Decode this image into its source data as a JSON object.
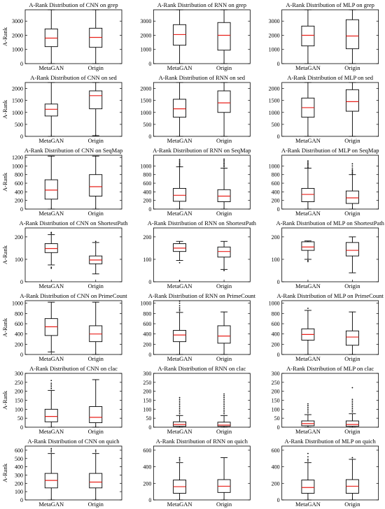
{
  "chart_data": [
    {
      "type": "box",
      "title": "A-Rank Distribution of CNN on grep",
      "ylabel": "A-Rank",
      "categories": [
        "MetaGAN",
        "Origin"
      ],
      "ylim": [
        0,
        3800
      ],
      "yticks": [
        0,
        1000,
        2000,
        3000
      ],
      "boxes": [
        {
          "min": 0,
          "q1": 1200,
          "median": 1800,
          "q3": 2450,
          "max": 3800,
          "outliers": []
        },
        {
          "min": 0,
          "q1": 1150,
          "median": 1850,
          "q3": 2500,
          "max": 3800,
          "outliers": []
        }
      ]
    },
    {
      "type": "box",
      "title": "A-Rank Distribution of RNN on grep",
      "ylabel": "",
      "categories": [
        "MetaGAN",
        "Origin"
      ],
      "ylim": [
        0,
        3800
      ],
      "yticks": [
        0,
        1000,
        2000,
        3000
      ],
      "boxes": [
        {
          "min": 0,
          "q1": 1300,
          "median": 2050,
          "q3": 2750,
          "max": 3800,
          "outliers": []
        },
        {
          "min": 0,
          "q1": 950,
          "median": 2000,
          "q3": 2900,
          "max": 3800,
          "outliers": []
        }
      ]
    },
    {
      "type": "box",
      "title": "A-Rank Distribution of MLP on grep",
      "ylabel": "",
      "categories": [
        "MetaGAN",
        "Origin"
      ],
      "ylim": [
        0,
        3800
      ],
      "yticks": [
        0,
        1000,
        2000,
        3000
      ],
      "boxes": [
        {
          "min": 0,
          "q1": 1250,
          "median": 2000,
          "q3": 2650,
          "max": 3800,
          "outliers": []
        },
        {
          "min": 0,
          "q1": 1050,
          "median": 1950,
          "q3": 3100,
          "max": 3800,
          "outliers": []
        }
      ]
    },
    {
      "type": "box",
      "title": "A-Rank Distribution of CNN on sed",
      "ylabel": "A-Rank",
      "categories": [
        "MetaGAN",
        "Origin"
      ],
      "ylim": [
        0,
        2250
      ],
      "yticks": [
        0,
        500,
        1000,
        1500,
        2000
      ],
      "boxes": [
        {
          "min": 0,
          "q1": 850,
          "median": 1130,
          "q3": 1350,
          "max": 2250,
          "outliers": []
        },
        {
          "min": 30,
          "q1": 1150,
          "median": 1700,
          "q3": 1900,
          "max": 2250,
          "outliers": []
        }
      ]
    },
    {
      "type": "box",
      "title": "A-Rank Distribution of RNN on sed",
      "ylabel": "",
      "categories": [
        "MetaGAN",
        "Origin"
      ],
      "ylim": [
        0,
        2250
      ],
      "yticks": [
        0,
        500,
        1000,
        1500,
        2000
      ],
      "boxes": [
        {
          "min": 0,
          "q1": 800,
          "median": 1150,
          "q3": 1550,
          "max": 2250,
          "outliers": []
        },
        {
          "min": 0,
          "q1": 1000,
          "median": 1400,
          "q3": 1900,
          "max": 2250,
          "outliers": []
        }
      ]
    },
    {
      "type": "box",
      "title": "A-Rank Distribution of MLP on sed",
      "ylabel": "",
      "categories": [
        "MetaGAN",
        "Origin"
      ],
      "ylim": [
        0,
        2250
      ],
      "yticks": [
        0,
        500,
        1000,
        1500,
        2000
      ],
      "boxes": [
        {
          "min": 0,
          "q1": 800,
          "median": 1200,
          "q3": 1600,
          "max": 2250,
          "outliers": []
        },
        {
          "min": 0,
          "q1": 1050,
          "median": 1450,
          "q3": 1950,
          "max": 2250,
          "outliers": []
        }
      ]
    },
    {
      "type": "box",
      "title": "A-Rank Distribution of CNN on SeqMap",
      "ylabel": "A-Rank",
      "categories": [
        "MetaGAN",
        "Origin"
      ],
      "ylim": [
        0,
        1250
      ],
      "yticks": [
        0,
        200,
        400,
        600,
        800,
        1000,
        1200
      ],
      "boxes": [
        {
          "min": 0,
          "q1": 230,
          "median": 440,
          "q3": 680,
          "max": 1230,
          "outliers": []
        },
        {
          "min": 0,
          "q1": 300,
          "median": 520,
          "q3": 800,
          "max": 1230,
          "outliers": []
        }
      ]
    },
    {
      "type": "box",
      "title": "A-Rank Distribution of RNN on SeqMap",
      "ylabel": "",
      "categories": [
        "MetaGAN",
        "Origin"
      ],
      "ylim": [
        0,
        1250
      ],
      "yticks": [
        0,
        200,
        400,
        600,
        800,
        1000
      ],
      "boxes": [
        {
          "min": 0,
          "q1": 180,
          "median": 320,
          "q3": 480,
          "max": 980,
          "outliers": [
            1000,
            1030,
            1060,
            1090,
            1120,
            1150
          ]
        },
        {
          "min": 0,
          "q1": 170,
          "median": 300,
          "q3": 450,
          "max": 950,
          "outliers": [
            980,
            1010,
            1040,
            1070,
            1100,
            1130,
            1160
          ]
        }
      ]
    },
    {
      "type": "box",
      "title": "A-Rank Distribution of MLP on SeqMap",
      "ylabel": "",
      "categories": [
        "MetaGAN",
        "Origin"
      ],
      "ylim": [
        0,
        1250
      ],
      "yticks": [
        0,
        200,
        400,
        600,
        800,
        1000
      ],
      "boxes": [
        {
          "min": 0,
          "q1": 170,
          "median": 340,
          "q3": 480,
          "max": 950,
          "outliers": [
            970,
            1000,
            1030,
            1060,
            1090,
            1120
          ]
        },
        {
          "min": 0,
          "q1": 130,
          "median": 260,
          "q3": 420,
          "max": 800,
          "outliers": [
            820,
            850,
            880,
            910,
            950,
            1000,
            1050
          ]
        }
      ]
    },
    {
      "type": "box",
      "title": "A-Rank Distribution of CNN on ShortestPath",
      "ylabel": "A-Rank",
      "categories": [
        "MetaGAN",
        "Origin"
      ],
      "ylim": [
        0,
        240
      ],
      "yticks": [
        0,
        100,
        200
      ],
      "boxes": [
        {
          "min": 75,
          "q1": 130,
          "median": 148,
          "q3": 170,
          "max": 210,
          "outliers": [
            60,
            65,
            215,
            220
          ]
        },
        {
          "min": 35,
          "q1": 80,
          "median": 97,
          "q3": 115,
          "max": 175,
          "outliers": [
            180
          ]
        }
      ]
    },
    {
      "type": "box",
      "title": "A-Rank Distribution of RNN on ShortestPath",
      "ylabel": "",
      "categories": [
        "MetaGAN",
        "Origin"
      ],
      "ylim": [
        0,
        240
      ],
      "yticks": [
        0,
        100,
        200
      ],
      "boxes": [
        {
          "min": 95,
          "q1": 135,
          "median": 150,
          "q3": 170,
          "max": 180,
          "outliers": [
            85,
            5
          ]
        },
        {
          "min": 55,
          "q1": 110,
          "median": 135,
          "q3": 155,
          "max": 180,
          "outliers": [
            50
          ]
        }
      ]
    },
    {
      "type": "box",
      "title": "A-Rank Distribution of MLP on ShortestPath",
      "ylabel": "",
      "categories": [
        "MetaGAN",
        "Origin"
      ],
      "ylim": [
        0,
        240
      ],
      "yticks": [
        0,
        100,
        200
      ],
      "boxes": [
        {
          "min": 100,
          "q1": 140,
          "median": 155,
          "q3": 178,
          "max": 182,
          "outliers": [
            90,
            95
          ]
        },
        {
          "min": 40,
          "q1": 115,
          "median": 140,
          "q3": 175,
          "max": 200,
          "outliers": []
        }
      ]
    },
    {
      "type": "box",
      "title": "A-Rank Distribution of CNN on PrimeCount",
      "ylabel": "A-Rank",
      "categories": [
        "MetaGAN",
        "Origin"
      ],
      "ylim": [
        0,
        1050
      ],
      "yticks": [
        0,
        200,
        400,
        600,
        800,
        1000
      ],
      "boxes": [
        {
          "min": 50,
          "q1": 370,
          "median": 540,
          "q3": 700,
          "max": 1020,
          "outliers": []
        },
        {
          "min": 0,
          "q1": 250,
          "median": 400,
          "q3": 560,
          "max": 1020,
          "outliers": []
        }
      ]
    },
    {
      "type": "box",
      "title": "A-Rank Distribution of RNN on PrimeCount",
      "ylabel": "",
      "categories": [
        "MetaGAN",
        "Origin"
      ],
      "ylim": [
        0,
        1050
      ],
      "yticks": [
        0,
        200,
        400,
        600,
        800,
        1000
      ],
      "boxes": [
        {
          "min": 0,
          "q1": 250,
          "median": 380,
          "q3": 470,
          "max": 820,
          "outliers": [
            850,
            880,
            910,
            950,
            1000,
            1040
          ]
        },
        {
          "min": 0,
          "q1": 220,
          "median": 360,
          "q3": 560,
          "max": 830,
          "outliers": []
        }
      ]
    },
    {
      "type": "box",
      "title": "A-Rank Distribution of MLP on PrimeCount",
      "ylabel": "",
      "categories": [
        "MetaGAN",
        "Origin"
      ],
      "ylim": [
        0,
        1050
      ],
      "yticks": [
        0,
        200,
        400,
        600,
        800,
        1000
      ],
      "boxes": [
        {
          "min": 0,
          "q1": 280,
          "median": 390,
          "q3": 500,
          "max": 860,
          "outliers": [
            900
          ]
        },
        {
          "min": 0,
          "q1": 180,
          "median": 340,
          "q3": 460,
          "max": 830,
          "outliers": []
        }
      ]
    },
    {
      "type": "box",
      "title": "A-Rank Distribution of CNN on clac",
      "ylabel": "A-Rank",
      "categories": [
        "MetaGAN",
        "Origin"
      ],
      "ylim": [
        0,
        300
      ],
      "yticks": [
        0,
        50,
        100,
        150,
        200,
        250,
        300
      ],
      "boxes": [
        {
          "min": 0,
          "q1": 30,
          "median": 60,
          "q3": 100,
          "max": 205,
          "outliers": [
            215,
            225,
            235,
            245,
            260
          ]
        },
        {
          "min": 0,
          "q1": 25,
          "median": 55,
          "q3": 115,
          "max": 265,
          "outliers": []
        }
      ]
    },
    {
      "type": "box",
      "title": "A-Rank Distribution of RNN on clac",
      "ylabel": "",
      "categories": [
        "MetaGAN",
        "Origin"
      ],
      "ylim": [
        0,
        300
      ],
      "yticks": [
        0,
        50,
        100,
        150,
        200,
        250,
        300
      ],
      "boxes": [
        {
          "min": 0,
          "q1": 5,
          "median": 15,
          "q3": 30,
          "max": 65,
          "outliers": [
            75,
            85,
            95,
            105,
            115,
            125,
            135,
            145,
            155,
            165
          ]
        },
        {
          "min": 0,
          "q1": 5,
          "median": 12,
          "q3": 28,
          "max": 65,
          "outliers": [
            75,
            85,
            95,
            105,
            115,
            125,
            135,
            145,
            155,
            165,
            175,
            185
          ]
        }
      ]
    },
    {
      "type": "box",
      "title": "A-Rank Distribution of MLP on clac",
      "ylabel": "",
      "categories": [
        "MetaGAN",
        "Origin"
      ],
      "ylim": [
        0,
        300
      ],
      "yticks": [
        0,
        50,
        100,
        150,
        200,
        250,
        300
      ],
      "boxes": [
        {
          "min": 0,
          "q1": 8,
          "median": 20,
          "q3": 35,
          "max": 70,
          "outliers": [
            80,
            90,
            100,
            110,
            120,
            130
          ]
        },
        {
          "min": 0,
          "q1": 5,
          "median": 15,
          "q3": 35,
          "max": 75,
          "outliers": [
            85,
            95,
            105,
            115,
            125,
            135,
            145,
            155,
            220
          ]
        }
      ]
    },
    {
      "type": "box",
      "title": "A-Rank Distribution of CNN on quich",
      "ylabel": "A-Rank",
      "categories": [
        "MetaGAN",
        "Origin"
      ],
      "ylim": [
        0,
        650
      ],
      "yticks": [
        0,
        100,
        200,
        300,
        400,
        500,
        600
      ],
      "boxes": [
        {
          "min": 0,
          "q1": 145,
          "median": 235,
          "q3": 320,
          "max": 560,
          "outliers": [
            580,
            600,
            620
          ]
        },
        {
          "min": 0,
          "q1": 145,
          "median": 215,
          "q3": 320,
          "max": 560,
          "outliers": [
            580,
            600
          ]
        }
      ]
    },
    {
      "type": "box",
      "title": "A-Rank Distribution of RNN on quich",
      "ylabel": "",
      "categories": [
        "MetaGAN",
        "Origin"
      ],
      "ylim": [
        0,
        650
      ],
      "yticks": [
        0,
        200,
        400,
        600
      ],
      "boxes": [
        {
          "min": 0,
          "q1": 80,
          "median": 160,
          "q3": 240,
          "max": 450,
          "outliers": [
            470,
            490,
            510
          ]
        },
        {
          "min": 0,
          "q1": 90,
          "median": 165,
          "q3": 245,
          "max": 510,
          "outliers": []
        }
      ]
    },
    {
      "type": "box",
      "title": "A-Rank Distribution of MLP on quich",
      "ylabel": "",
      "categories": [
        "MetaGAN",
        "Origin"
      ],
      "ylim": [
        0,
        650
      ],
      "yticks": [
        0,
        200,
        400,
        600
      ],
      "boxes": [
        {
          "min": 0,
          "q1": 80,
          "median": 150,
          "q3": 240,
          "max": 450,
          "outliers": [
            470,
            490,
            520,
            560
          ]
        },
        {
          "min": 0,
          "q1": 80,
          "median": 165,
          "q3": 245,
          "max": 490,
          "outliers": [
            510
          ]
        }
      ]
    }
  ]
}
